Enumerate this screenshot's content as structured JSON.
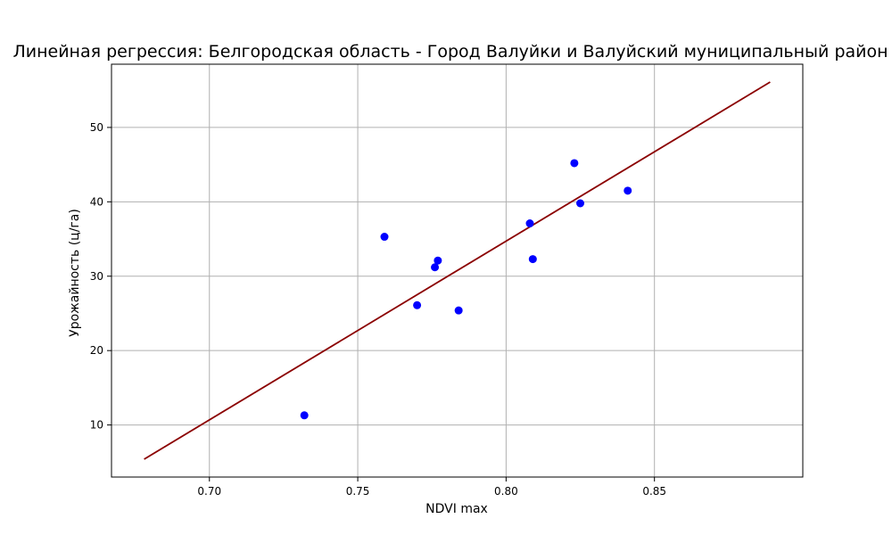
{
  "colors": {
    "points": "#0000ff",
    "regression_line": "#8b0000",
    "grid": "#b0b0b0",
    "axes": "#000000",
    "background": "#ffffff"
  },
  "chart_data": {
    "type": "scatter",
    "title": "Линейная регрессия: Белгородская область - Город Валуйки и Валуйский муниципальный район",
    "xlabel": "NDVI max",
    "ylabel": "Урожайность (ц/га)",
    "xlim": [
      0.667,
      0.9
    ],
    "ylim": [
      3.0,
      58.5
    ],
    "xticks": [
      0.7,
      0.75,
      0.8,
      0.85
    ],
    "xtick_labels": [
      "0.70",
      "0.75",
      "0.80",
      "0.85"
    ],
    "yticks": [
      10,
      20,
      30,
      40,
      50
    ],
    "ytick_labels": [
      "10",
      "20",
      "30",
      "40",
      "50"
    ],
    "grid": true,
    "legend": "none",
    "series": [
      {
        "type": "scatter",
        "points": [
          {
            "x": 0.732,
            "y": 11.3
          },
          {
            "x": 0.759,
            "y": 35.3
          },
          {
            "x": 0.77,
            "y": 26.1
          },
          {
            "x": 0.776,
            "y": 31.2
          },
          {
            "x": 0.777,
            "y": 32.1
          },
          {
            "x": 0.784,
            "y": 25.4
          },
          {
            "x": 0.808,
            "y": 37.1
          },
          {
            "x": 0.809,
            "y": 32.3
          },
          {
            "x": 0.823,
            "y": 45.2
          },
          {
            "x": 0.825,
            "y": 39.8
          },
          {
            "x": 0.841,
            "y": 41.5
          }
        ]
      },
      {
        "type": "line",
        "points": [
          {
            "x": 0.678,
            "y": 5.4
          },
          {
            "x": 0.889,
            "y": 56.1
          }
        ]
      }
    ]
  }
}
